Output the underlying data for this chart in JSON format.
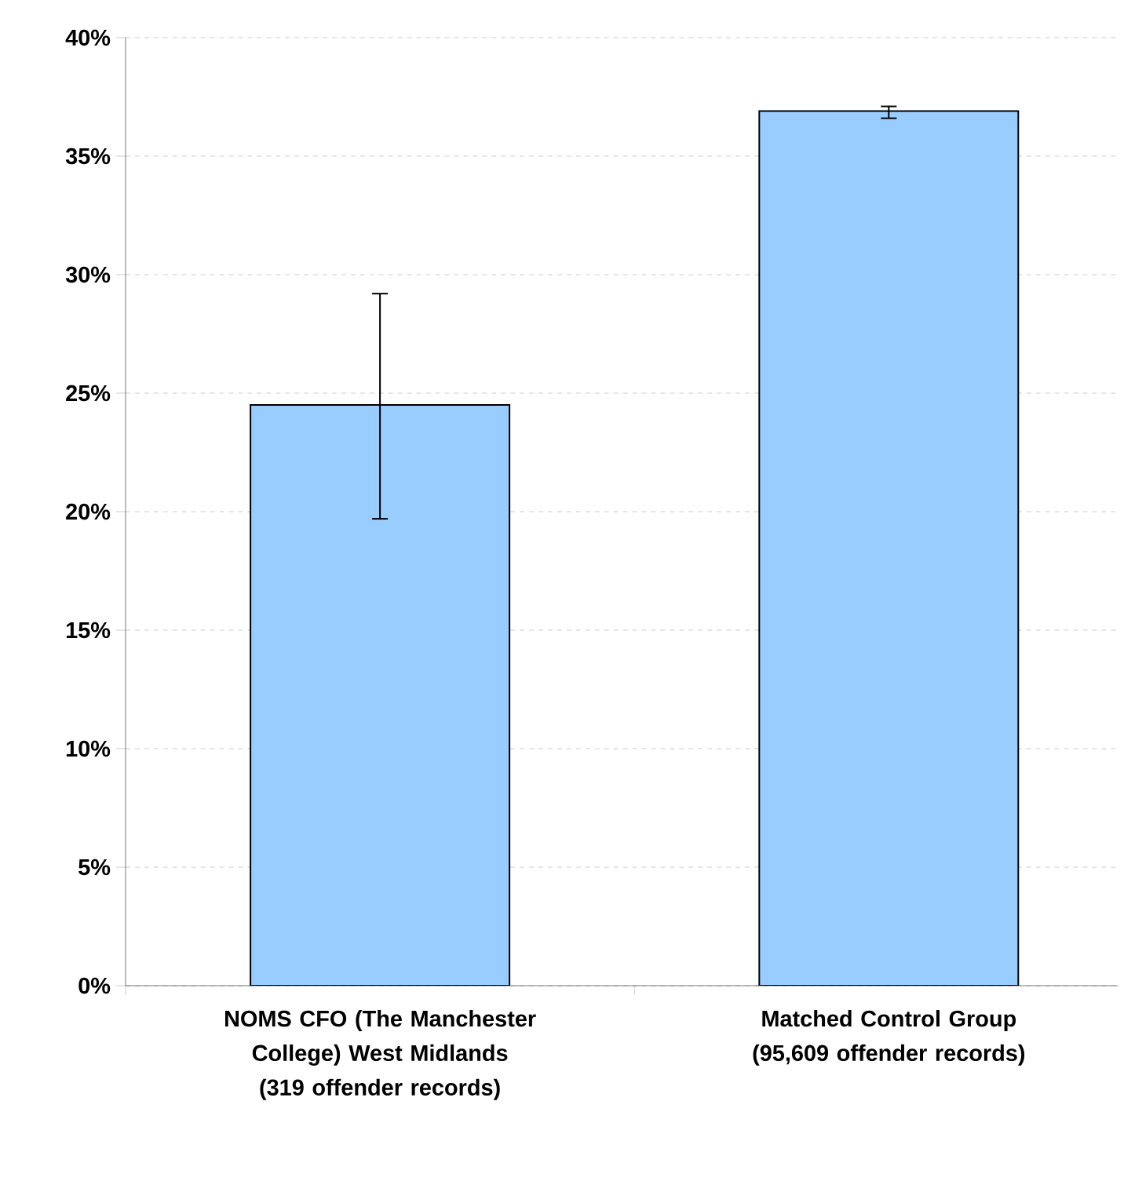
{
  "chart_data": {
    "type": "bar",
    "categories": [
      "NOMS CFO (The Manchester College) West Midlands (319 offender records)",
      "Matched Control Group (95,609 offender records)"
    ],
    "values": [
      24.5,
      36.9
    ],
    "errors": [
      [
        19.7,
        29.2
      ],
      [
        36.6,
        37.1
      ]
    ],
    "color": "#99ccff",
    "ylim": [
      0,
      40
    ],
    "yticks": [
      {
        "value": 0,
        "label": "0%"
      },
      {
        "value": 5,
        "label": "5%"
      },
      {
        "value": 10,
        "label": "10%"
      },
      {
        "value": 15,
        "label": "15%"
      },
      {
        "value": 20,
        "label": "20%"
      },
      {
        "value": 25,
        "label": "25%"
      },
      {
        "value": 30,
        "label": "30%"
      },
      {
        "value": 35,
        "label": "35%"
      },
      {
        "value": 40,
        "label": "40%"
      }
    ],
    "grid": "y"
  }
}
